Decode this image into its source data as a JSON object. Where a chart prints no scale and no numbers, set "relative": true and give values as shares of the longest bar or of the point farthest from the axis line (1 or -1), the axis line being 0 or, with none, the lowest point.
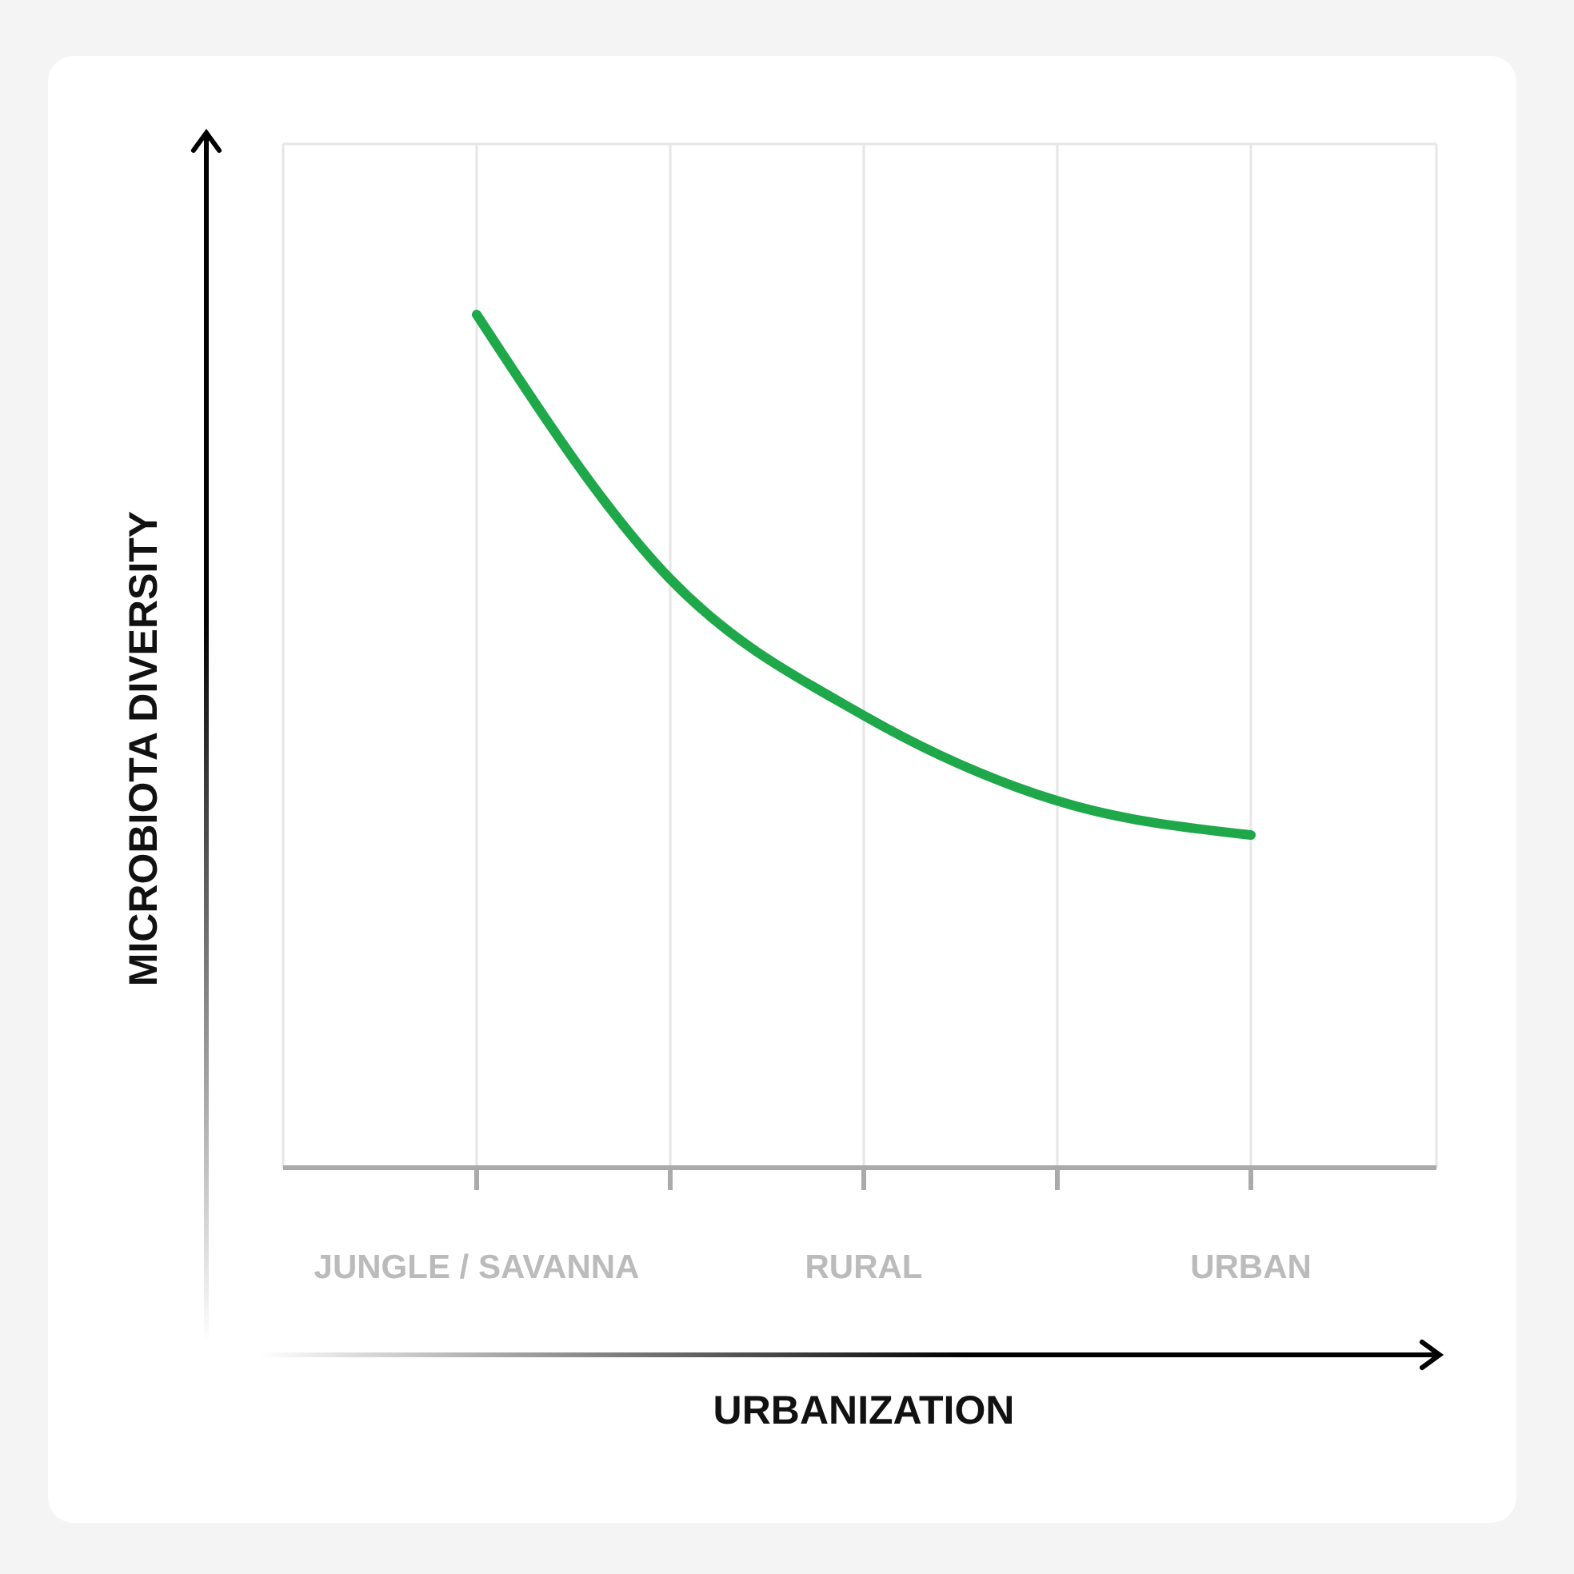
{
  "chart_data": {
    "type": "line",
    "xlabel": "URBANIZATION",
    "ylabel": "MICROBIOTA DIVERSITY",
    "categories": [
      "JUNGLE / SAVANNA",
      null,
      "RURAL",
      null,
      "URBAN"
    ],
    "relative": true,
    "series": [
      {
        "color": "#1ea84a",
        "values": [
          1,
          0.69,
          0.53,
          0.43,
          0.39
        ]
      }
    ],
    "grid": true,
    "marker": "none",
    "line_style": "solid"
  }
}
